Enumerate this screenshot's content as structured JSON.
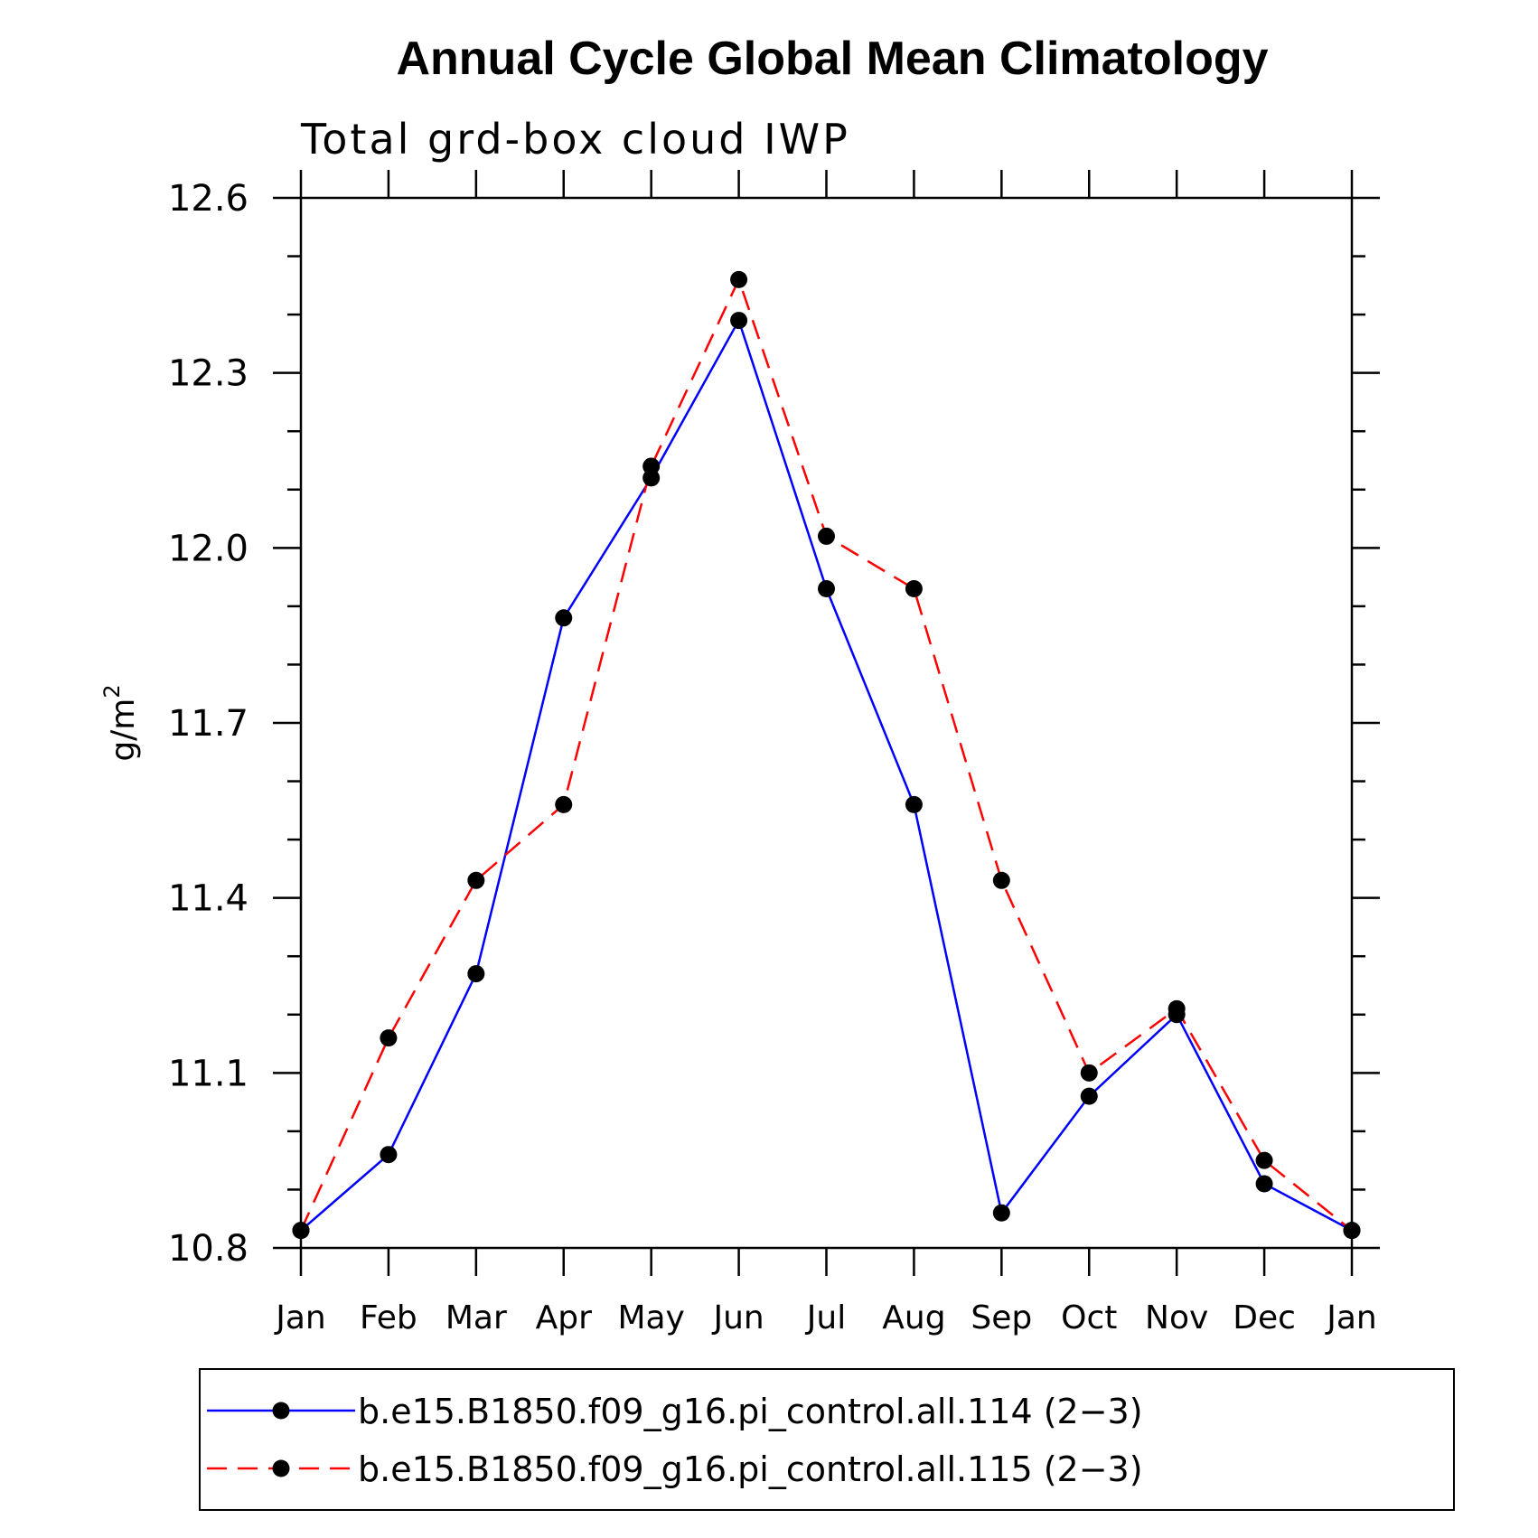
{
  "chart_data": {
    "type": "line",
    "title": "Annual Cycle Global Mean Climatology",
    "subtitle": "Total grd-box cloud IWP",
    "ylabel": "g/m",
    "ylabel_superscript": "2",
    "xlabel": "",
    "ylim": [
      10.8,
      12.6
    ],
    "yticks": [
      10.8,
      11.1,
      11.4,
      11.7,
      12.0,
      12.3,
      12.6
    ],
    "ytick_labels": [
      "10.8",
      "11.1",
      "11.4",
      "11.7",
      "12.0",
      "12.3",
      "12.6"
    ],
    "y_minor_step": 0.1,
    "categories": [
      "Jan",
      "Feb",
      "Mar",
      "Apr",
      "May",
      "Jun",
      "Jul",
      "Aug",
      "Sep",
      "Oct",
      "Nov",
      "Dec",
      "Jan"
    ],
    "legend_position": "bottom",
    "series": [
      {
        "name": "b.e15.B1850.f09_g16.pi_control.all.114 (2−3)",
        "color": "#0000ff",
        "style": "solid",
        "marker_color": "#000000",
        "values": [
          10.83,
          10.96,
          11.27,
          11.88,
          12.12,
          12.39,
          11.93,
          11.56,
          10.86,
          11.06,
          11.2,
          10.91,
          10.83
        ]
      },
      {
        "name": "b.e15.B1850.f09_g16.pi_control.all.115 (2−3)",
        "color": "#ff0000",
        "style": "dashed",
        "marker_color": "#000000",
        "values": [
          10.83,
          11.16,
          11.43,
          11.56,
          12.14,
          12.46,
          12.02,
          11.93,
          11.43,
          11.1,
          11.21,
          10.95,
          10.83
        ]
      }
    ]
  }
}
